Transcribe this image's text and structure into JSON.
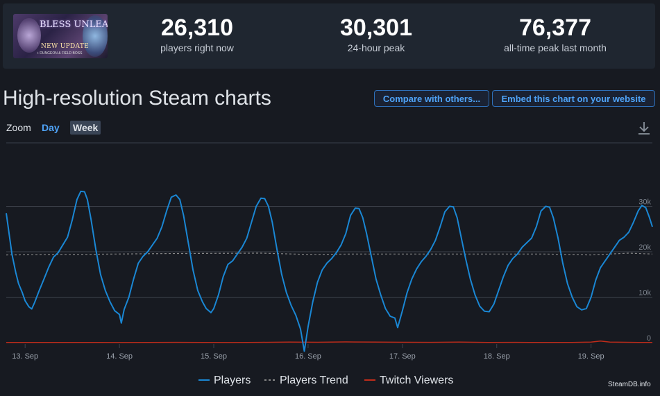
{
  "stats": [
    {
      "value": "26,310",
      "label": "players right now"
    },
    {
      "value": "30,301",
      "label": "24-hour peak"
    },
    {
      "value": "76,377",
      "label": "all-time peak last month"
    }
  ],
  "game_image": {
    "title": "BLESS UNLEASHED",
    "line1": "NEW UPDATE",
    "line2": "+ DUNGEON & FIELD BOSS"
  },
  "heading": "High-resolution Steam charts",
  "buttons": {
    "compare": "Compare with others...",
    "embed": "Embed this chart on your website"
  },
  "zoom": {
    "label": "Zoom",
    "options": [
      "Day",
      "Week"
    ],
    "selected": "Week"
  },
  "legend": [
    {
      "name": "Players",
      "color": "#1a87d4"
    },
    {
      "name": "Players Trend",
      "color": "#888888"
    },
    {
      "name": "Twitch Viewers",
      "color": "#c02c1a"
    }
  ],
  "credit": "SteamDB.info",
  "chart_data": {
    "type": "line",
    "x_tick_labels": [
      "13. Sep",
      "14. Sep",
      "15. Sep",
      "16. Sep",
      "17. Sep",
      "18. Sep",
      "19. Sep"
    ],
    "y_tick_labels": [
      "0",
      "10k",
      "20k",
      "30k"
    ],
    "ylim": [
      0,
      30000
    ],
    "x_range_days": [
      12.8,
      19.65
    ],
    "grid": true,
    "legend_position": "bottom",
    "series": [
      {
        "name": "Players",
        "points": [
          [
            12.8,
            28500
          ],
          [
            12.83,
            24000
          ],
          [
            12.86,
            19500
          ],
          [
            12.9,
            15500
          ],
          [
            12.93,
            13000
          ],
          [
            12.97,
            11000
          ],
          [
            13.0,
            9200
          ],
          [
            13.04,
            7900
          ],
          [
            13.07,
            7400
          ],
          [
            13.1,
            8800
          ],
          [
            13.15,
            11500
          ],
          [
            13.2,
            14000
          ],
          [
            13.25,
            16600
          ],
          [
            13.3,
            18800
          ],
          [
            13.35,
            19800
          ],
          [
            13.4,
            21500
          ],
          [
            13.45,
            23200
          ],
          [
            13.5,
            27000
          ],
          [
            13.55,
            31500
          ],
          [
            13.59,
            33300
          ],
          [
            13.63,
            33200
          ],
          [
            13.66,
            31500
          ],
          [
            13.7,
            27000
          ],
          [
            13.75,
            20500
          ],
          [
            13.8,
            15000
          ],
          [
            13.85,
            11500
          ],
          [
            13.9,
            9000
          ],
          [
            13.95,
            7000
          ],
          [
            14.0,
            6200
          ],
          [
            14.02,
            4300
          ],
          [
            14.05,
            7300
          ],
          [
            14.1,
            10000
          ],
          [
            14.15,
            14000
          ],
          [
            14.2,
            17500
          ],
          [
            14.25,
            19000
          ],
          [
            14.3,
            20000
          ],
          [
            14.35,
            21500
          ],
          [
            14.4,
            23000
          ],
          [
            14.45,
            25500
          ],
          [
            14.5,
            29000
          ],
          [
            14.55,
            32000
          ],
          [
            14.6,
            32500
          ],
          [
            14.64,
            31500
          ],
          [
            14.68,
            28000
          ],
          [
            14.73,
            22000
          ],
          [
            14.78,
            16000
          ],
          [
            14.83,
            11500
          ],
          [
            14.88,
            9000
          ],
          [
            14.92,
            7500
          ],
          [
            14.97,
            6600
          ],
          [
            15.0,
            7500
          ],
          [
            15.05,
            10500
          ],
          [
            15.1,
            14500
          ],
          [
            15.15,
            17200
          ],
          [
            15.2,
            18000
          ],
          [
            15.25,
            19500
          ],
          [
            15.3,
            21000
          ],
          [
            15.35,
            23000
          ],
          [
            15.4,
            26500
          ],
          [
            15.45,
            30000
          ],
          [
            15.5,
            31800
          ],
          [
            15.54,
            31700
          ],
          [
            15.58,
            30000
          ],
          [
            15.62,
            26500
          ],
          [
            15.67,
            20500
          ],
          [
            15.72,
            15000
          ],
          [
            15.77,
            11000
          ],
          [
            15.82,
            8200
          ],
          [
            15.87,
            6000
          ],
          [
            15.92,
            3000
          ],
          [
            15.96,
            -1900
          ],
          [
            16.0,
            3500
          ],
          [
            16.05,
            9000
          ],
          [
            16.1,
            13300
          ],
          [
            16.15,
            16000
          ],
          [
            16.2,
            17500
          ],
          [
            16.25,
            18500
          ],
          [
            16.3,
            19800
          ],
          [
            16.35,
            21500
          ],
          [
            16.4,
            24000
          ],
          [
            16.45,
            28000
          ],
          [
            16.5,
            29600
          ],
          [
            16.54,
            29500
          ],
          [
            16.58,
            27500
          ],
          [
            16.62,
            24000
          ],
          [
            16.67,
            19000
          ],
          [
            16.72,
            14000
          ],
          [
            16.77,
            10500
          ],
          [
            16.82,
            7500
          ],
          [
            16.87,
            5800
          ],
          [
            16.92,
            5400
          ],
          [
            16.95,
            3300
          ],
          [
            17.0,
            7000
          ],
          [
            17.05,
            11000
          ],
          [
            17.1,
            14000
          ],
          [
            17.15,
            16200
          ],
          [
            17.2,
            17800
          ],
          [
            17.25,
            19000
          ],
          [
            17.3,
            20500
          ],
          [
            17.35,
            22500
          ],
          [
            17.4,
            25500
          ],
          [
            17.45,
            28800
          ],
          [
            17.5,
            30000
          ],
          [
            17.54,
            29900
          ],
          [
            17.58,
            27500
          ],
          [
            17.62,
            23500
          ],
          [
            17.67,
            18500
          ],
          [
            17.72,
            14000
          ],
          [
            17.77,
            10500
          ],
          [
            17.82,
            8000
          ],
          [
            17.87,
            6900
          ],
          [
            17.92,
            6800
          ],
          [
            17.97,
            8500
          ],
          [
            18.02,
            11500
          ],
          [
            18.07,
            14500
          ],
          [
            18.12,
            17000
          ],
          [
            18.17,
            18500
          ],
          [
            18.22,
            19500
          ],
          [
            18.27,
            21000
          ],
          [
            18.32,
            22000
          ],
          [
            18.37,
            23000
          ],
          [
            18.42,
            25500
          ],
          [
            18.47,
            29000
          ],
          [
            18.52,
            30000
          ],
          [
            18.56,
            29800
          ],
          [
            18.6,
            27500
          ],
          [
            18.65,
            23000
          ],
          [
            18.7,
            17500
          ],
          [
            18.75,
            13000
          ],
          [
            18.8,
            10000
          ],
          [
            18.85,
            7900
          ],
          [
            18.9,
            7200
          ],
          [
            18.95,
            7500
          ],
          [
            19.0,
            10000
          ],
          [
            19.05,
            13800
          ],
          [
            19.1,
            16500
          ],
          [
            19.15,
            18000
          ],
          [
            19.2,
            19500
          ],
          [
            19.25,
            21000
          ],
          [
            19.3,
            22500
          ],
          [
            19.35,
            23200
          ],
          [
            19.4,
            24300
          ],
          [
            19.45,
            26500
          ],
          [
            19.5,
            29000
          ],
          [
            19.54,
            30200
          ],
          [
            19.58,
            29700
          ],
          [
            19.62,
            27500
          ],
          [
            19.65,
            25500
          ]
        ]
      },
      {
        "name": "Players Trend",
        "points": [
          [
            12.8,
            19300
          ],
          [
            13.5,
            19400
          ],
          [
            14.5,
            19600
          ],
          [
            15.5,
            19700
          ],
          [
            16.0,
            19400
          ],
          [
            16.5,
            19500
          ],
          [
            17.5,
            19500
          ],
          [
            18.5,
            19500
          ],
          [
            19.0,
            19300
          ],
          [
            19.4,
            19700
          ],
          [
            19.65,
            19500
          ]
        ]
      },
      {
        "name": "Twitch Viewers",
        "points": [
          [
            12.8,
            30
          ],
          [
            13.2,
            40
          ],
          [
            13.5,
            50
          ],
          [
            13.8,
            30
          ],
          [
            14.0,
            20
          ],
          [
            14.3,
            40
          ],
          [
            14.6,
            60
          ],
          [
            14.9,
            40
          ],
          [
            15.2,
            20
          ],
          [
            15.5,
            60
          ],
          [
            15.8,
            100
          ],
          [
            16.1,
            80
          ],
          [
            16.4,
            150
          ],
          [
            16.7,
            100
          ],
          [
            17.0,
            80
          ],
          [
            17.3,
            60
          ],
          [
            17.6,
            100
          ],
          [
            17.9,
            40
          ],
          [
            18.2,
            60
          ],
          [
            18.5,
            30
          ],
          [
            18.8,
            50
          ],
          [
            19.0,
            120
          ],
          [
            19.1,
            350
          ],
          [
            19.2,
            120
          ],
          [
            19.5,
            40
          ],
          [
            19.65,
            30
          ]
        ]
      }
    ]
  }
}
